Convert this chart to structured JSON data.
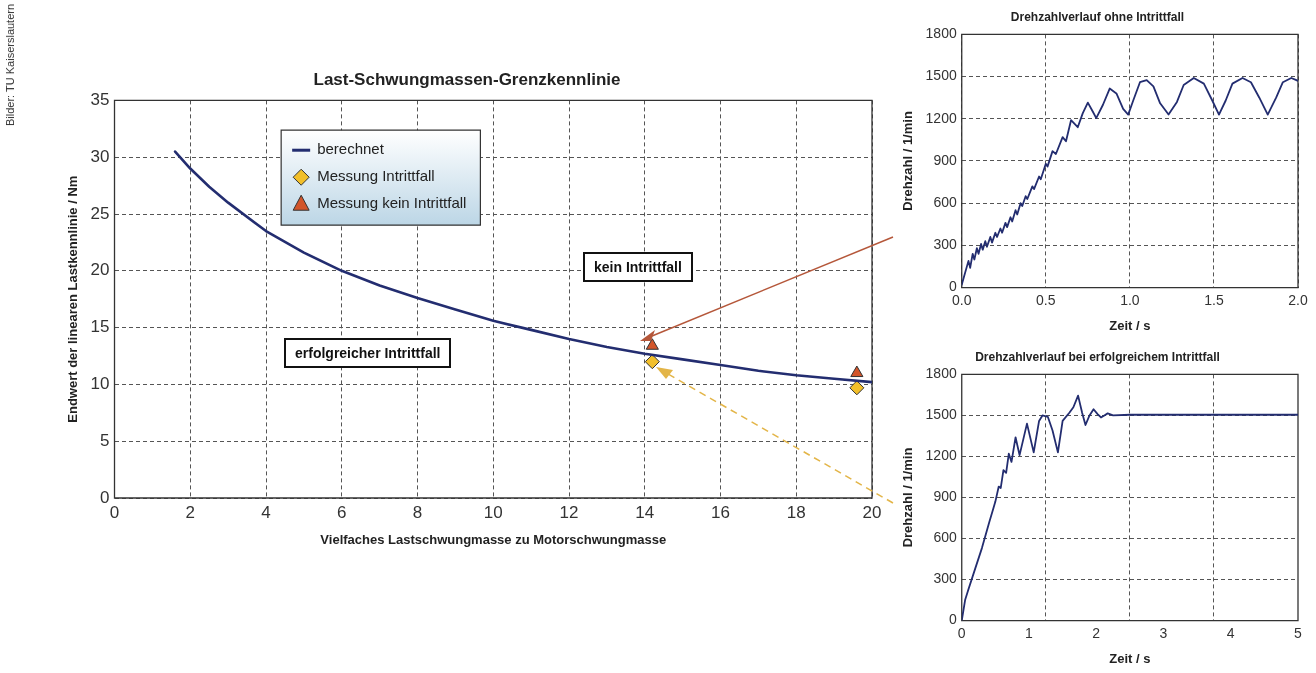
{
  "chart_data": [
    {
      "type": "line",
      "title": "Last-Schwungmassen-Grenzkennlinie",
      "xlabel": "Vielfaches Lastschwungmasse zu Motorschwungmasse",
      "ylabel": "Endwert der linearen Lastkennlinie / Nm",
      "xlim": [
        0,
        20
      ],
      "ylim": [
        0,
        35
      ],
      "xticks": [
        0,
        2,
        4,
        6,
        8,
        10,
        12,
        14,
        16,
        18,
        20
      ],
      "yticks": [
        0,
        5,
        10,
        15,
        20,
        25,
        30,
        35
      ],
      "grid": true,
      "legend": "top left",
      "series": [
        {
          "name": "berechnet",
          "color": "#232d70",
          "marker": "none",
          "line_style": "solid",
          "x": [
            1.6,
            2,
            2.5,
            3,
            4,
            5,
            6,
            7,
            8,
            9,
            10,
            11,
            12,
            13,
            14,
            15,
            16,
            17,
            18,
            19,
            20
          ],
          "values": [
            30.5,
            29,
            27.4,
            26,
            23.5,
            21.6,
            20,
            18.7,
            17.6,
            16.6,
            15.6,
            14.8,
            14,
            13.3,
            12.7,
            12.2,
            11.7,
            11.2,
            10.8,
            10.5,
            10.2
          ]
        },
        {
          "name": "Messung Intrittfall",
          "type": "scatter",
          "color": "#f2bf2a",
          "marker": "diamond",
          "x": [
            14.2,
            19.6
          ],
          "values": [
            12,
            9.7
          ]
        },
        {
          "name": "Messung kein Intrittfall",
          "type": "scatter",
          "color": "#d2552a",
          "marker": "triangle",
          "x": [
            14.2,
            19.6
          ],
          "values": [
            13.4,
            11
          ]
        }
      ],
      "annotations": [
        "kein Intrittfall",
        "erfolgreicher Intrittfall",
        "Bilder: TU Kaiserslautern"
      ]
    },
    {
      "type": "line",
      "title": "Drehzahlverlauf ohne Intrittfall",
      "xlabel": "Zeit / s",
      "ylabel": "Drehzahl / 1/min",
      "xlim": [
        0,
        2
      ],
      "ylim": [
        0,
        1800
      ],
      "xticks": [
        {
          "value": 0,
          "label": "0.0"
        },
        {
          "value": 0.5,
          "label": "0.5"
        },
        {
          "value": 1,
          "label": "1.0"
        },
        {
          "value": 1.5,
          "label": "1.5"
        },
        {
          "value": 2,
          "label": "2.0"
        }
      ],
      "yticks": [
        0,
        300,
        600,
        900,
        1200,
        1500,
        1800
      ],
      "grid": true,
      "legend": false,
      "series": [
        {
          "color": "#232d70",
          "x": [
            0,
            0.04,
            0.05,
            0.065,
            0.075,
            0.09,
            0.1,
            0.115,
            0.125,
            0.14,
            0.15,
            0.17,
            0.18,
            0.2,
            0.21,
            0.23,
            0.24,
            0.26,
            0.27,
            0.29,
            0.3,
            0.32,
            0.33,
            0.35,
            0.36,
            0.38,
            0.39,
            0.42,
            0.43,
            0.46,
            0.47,
            0.5,
            0.51,
            0.54,
            0.56,
            0.6,
            0.62,
            0.65,
            0.69,
            0.72,
            0.75,
            0.78,
            0.8,
            0.84,
            0.88,
            0.92,
            0.96,
            0.99,
            1.02,
            1.06,
            1.1,
            1.14,
            1.18,
            1.23,
            1.28,
            1.32,
            1.38,
            1.44,
            1.49,
            1.53,
            1.57,
            1.61,
            1.67,
            1.72,
            1.77,
            1.82,
            1.87,
            1.91,
            1.96,
            2
          ],
          "values": [
            20,
            190,
            140,
            240,
            200,
            280,
            240,
            310,
            270,
            330,
            290,
            360,
            320,
            390,
            360,
            420,
            390,
            460,
            430,
            500,
            470,
            550,
            520,
            600,
            580,
            650,
            630,
            720,
            700,
            790,
            770,
            880,
            860,
            970,
            950,
            1070,
            1040,
            1190,
            1140,
            1240,
            1315,
            1250,
            1205,
            1300,
            1415,
            1380,
            1270,
            1230,
            1330,
            1460,
            1475,
            1430,
            1310,
            1230,
            1320,
            1440,
            1490,
            1450,
            1330,
            1230,
            1330,
            1450,
            1490,
            1460,
            1350,
            1230,
            1350,
            1460,
            1490,
            1470
          ]
        }
      ]
    },
    {
      "type": "line",
      "title": "Drehzahlverlauf bei erfolgreichem Intrittfall",
      "xlabel": "Zeit / s",
      "ylabel": "Drehzahl / 1/min",
      "xlim": [
        0,
        5
      ],
      "ylim": [
        0,
        1800
      ],
      "xticks": [
        0,
        1,
        {
          "value": 1.25,
          "label": null
        },
        2,
        {
          "value": 2.5,
          "label": null
        },
        3,
        {
          "value": 3.75,
          "label": null
        },
        4,
        5
      ],
      "yticks": [
        0,
        300,
        600,
        900,
        1200,
        1500,
        1800
      ],
      "grid": true,
      "legend": false,
      "series": [
        {
          "color": "#232d70",
          "x": [
            0,
            0.05,
            0.1,
            0.2,
            0.3,
            0.41,
            0.5,
            0.55,
            0.58,
            0.62,
            0.66,
            0.7,
            0.74,
            0.8,
            0.86,
            0.97,
            1.07,
            1.15,
            1.2,
            1.28,
            1.35,
            1.43,
            1.5,
            1.6,
            1.66,
            1.73,
            1.79,
            1.84,
            1.9,
            1.96,
            2.02,
            2.07,
            2.12,
            2.17,
            2.25,
            2.5,
            3,
            4,
            5
          ],
          "values": [
            0,
            150,
            230,
            380,
            530,
            720,
            870,
            980,
            970,
            1100,
            1080,
            1220,
            1160,
            1340,
            1210,
            1440,
            1230,
            1460,
            1500,
            1490,
            1390,
            1230,
            1460,
            1520,
            1560,
            1645,
            1520,
            1430,
            1500,
            1545,
            1510,
            1485,
            1500,
            1515,
            1500,
            1505,
            1505,
            1505,
            1505
          ]
        }
      ]
    }
  ]
}
